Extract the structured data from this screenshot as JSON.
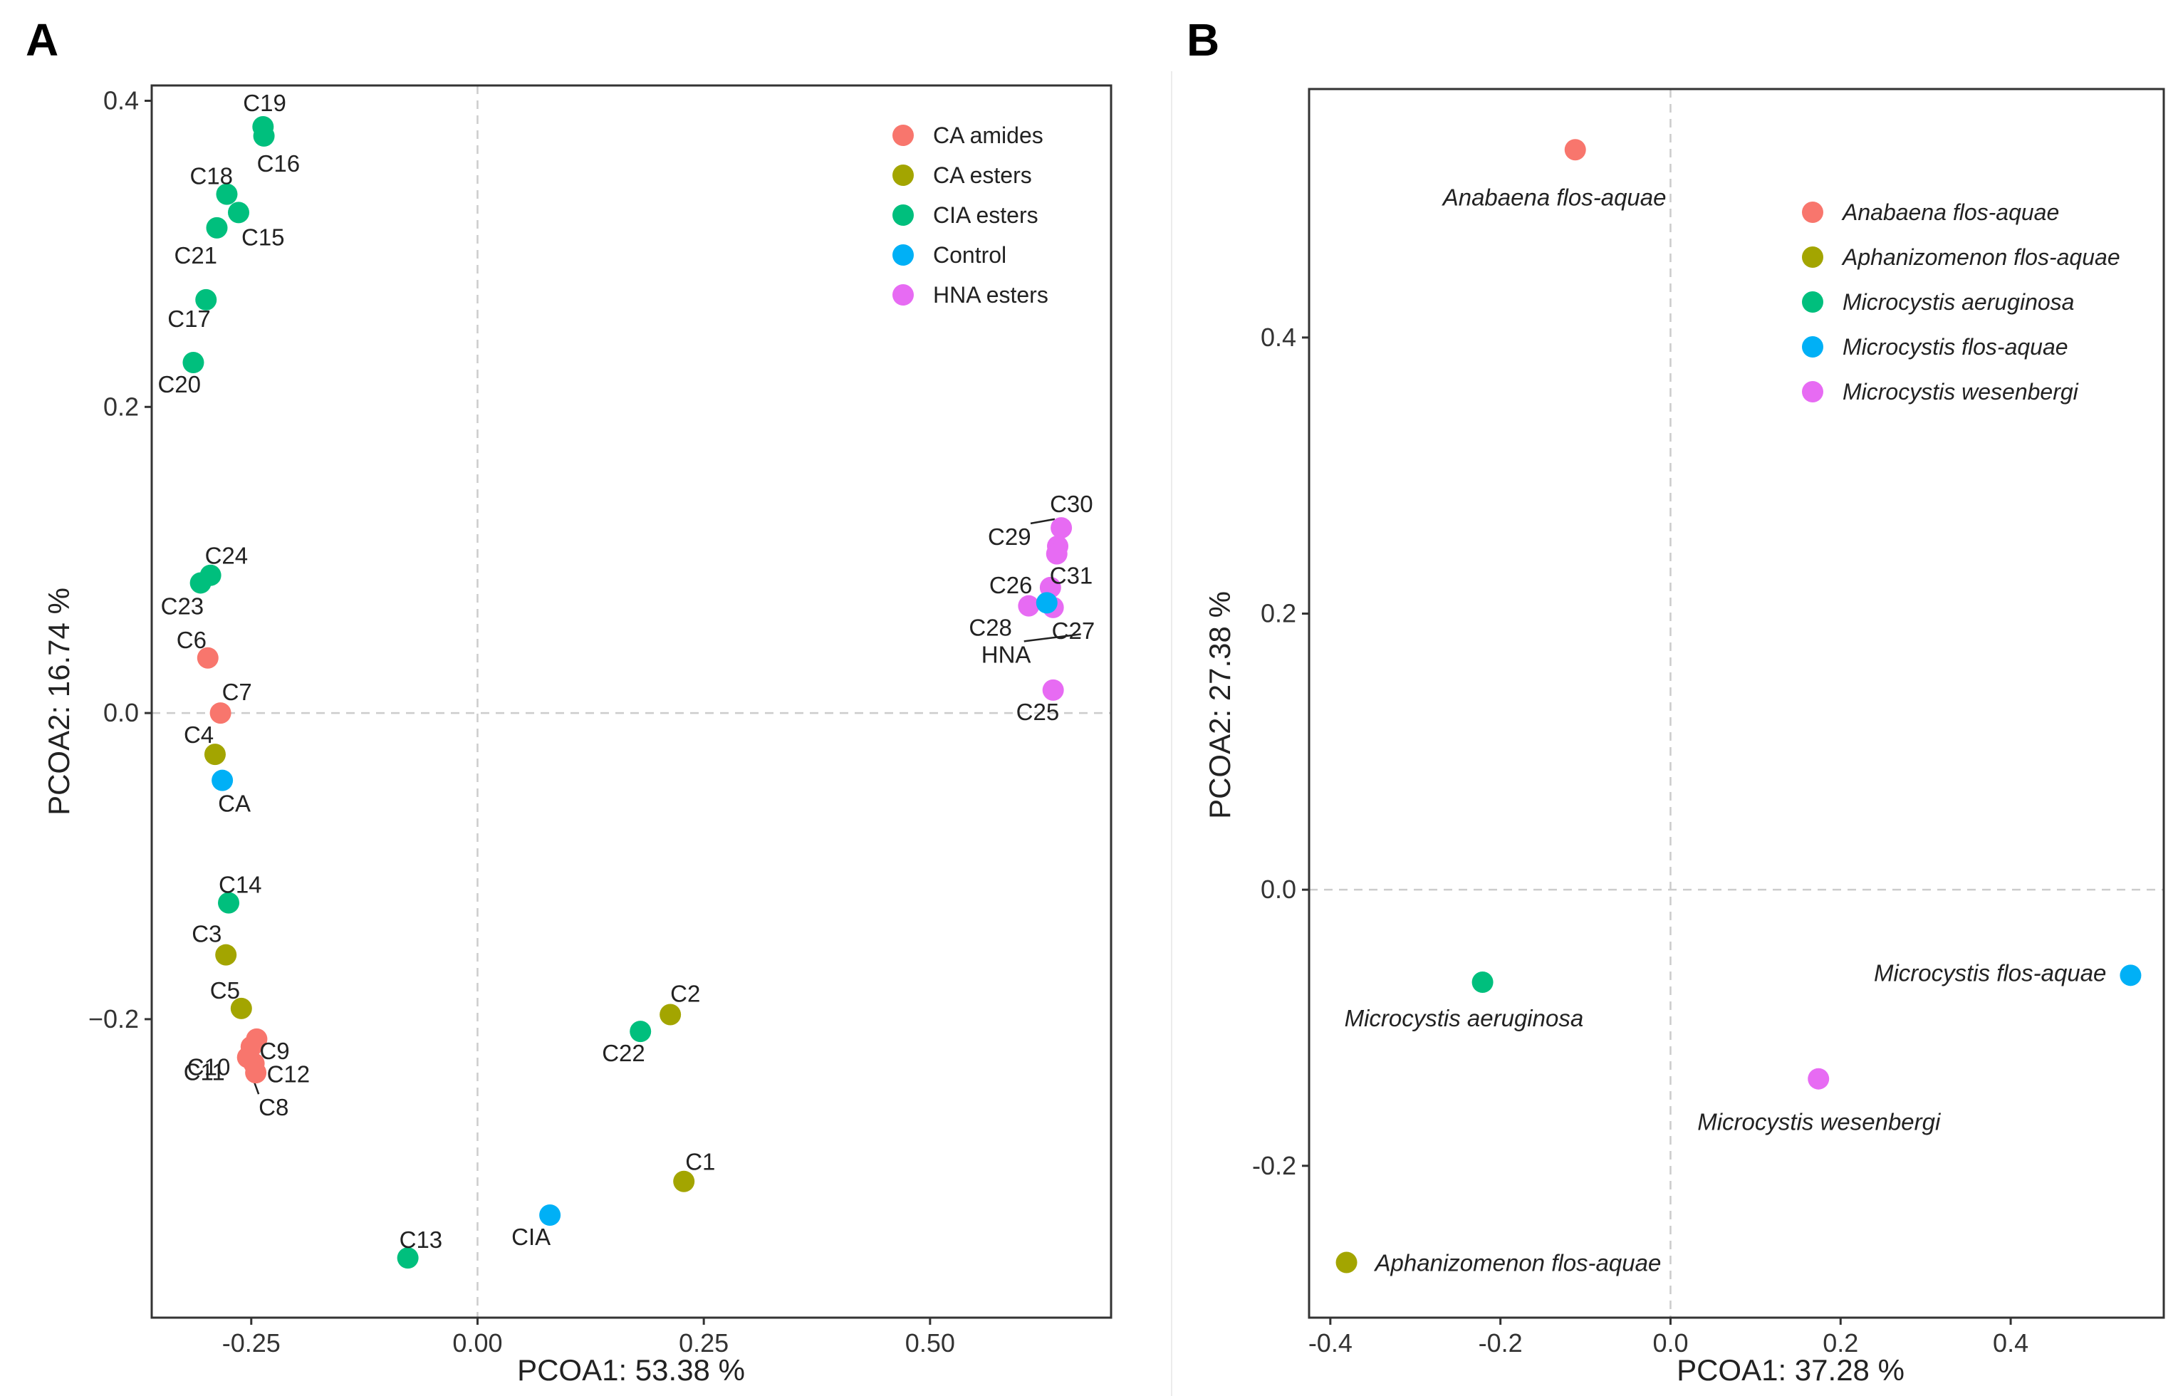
{
  "panels": [
    "A",
    "B"
  ],
  "chart_data": [
    {
      "type": "scatter",
      "panel": "A",
      "xlabel": "PCOA1:  53.38 %",
      "ylabel": "PCOA2:  16.74 %",
      "xlim": [
        -0.36,
        0.7
      ],
      "ylim": [
        -0.395,
        0.41
      ],
      "xticks": [
        -0.25,
        0.0,
        0.25,
        0.5
      ],
      "xtick_labels": [
        "-0.25",
        "0.00",
        "0.25",
        "0.50"
      ],
      "yticks": [
        -0.2,
        0.0,
        0.2,
        0.4
      ],
      "ytick_labels": [
        "−0.2",
        "0.0",
        "0.2",
        "0.4"
      ],
      "reference_lines": {
        "x": 0,
        "y": 0
      },
      "legend": [
        {
          "name": "CA amides",
          "color": "#F8766D"
        },
        {
          "name": "CA esters",
          "color": "#A3A500"
        },
        {
          "name": "CIA esters",
          "color": "#00BF7D"
        },
        {
          "name": "Control",
          "color": "#00B0F6"
        },
        {
          "name": "HNA esters",
          "color": "#E76BF3"
        }
      ],
      "points": [
        {
          "label": "C19",
          "group": "CIA esters",
          "x": -0.237,
          "y": 0.383
        },
        {
          "label": "C16",
          "group": "CIA esters",
          "x": -0.236,
          "y": 0.377
        },
        {
          "label": "C18",
          "group": "CIA esters",
          "x": -0.277,
          "y": 0.339
        },
        {
          "label": "C15",
          "group": "CIA esters",
          "x": -0.264,
          "y": 0.327
        },
        {
          "label": "C21",
          "group": "CIA esters",
          "x": -0.288,
          "y": 0.317
        },
        {
          "label": "C17",
          "group": "CIA esters",
          "x": -0.3,
          "y": 0.27
        },
        {
          "label": "C20",
          "group": "CIA esters",
          "x": -0.314,
          "y": 0.229
        },
        {
          "label": "C24",
          "group": "CIA esters",
          "x": -0.295,
          "y": 0.09
        },
        {
          "label": "C23",
          "group": "CIA esters",
          "x": -0.306,
          "y": 0.085
        },
        {
          "label": "C6",
          "group": "CA amides",
          "x": -0.298,
          "y": 0.036
        },
        {
          "label": "C7",
          "group": "CA amides",
          "x": -0.284,
          "y": 0.0
        },
        {
          "label": "C4",
          "group": "CA esters",
          "x": -0.29,
          "y": -0.027
        },
        {
          "label": "CA",
          "group": "Control",
          "x": -0.282,
          "y": -0.044
        },
        {
          "label": "C14",
          "group": "CIA esters",
          "x": -0.275,
          "y": -0.124
        },
        {
          "label": "C3",
          "group": "CA esters",
          "x": -0.278,
          "y": -0.158
        },
        {
          "label": "C5",
          "group": "CA esters",
          "x": -0.261,
          "y": -0.193
        },
        {
          "label": "C9",
          "group": "CA amides",
          "x": -0.244,
          "y": -0.213
        },
        {
          "label": "C10",
          "group": "CA amides",
          "x": -0.25,
          "y": -0.218
        },
        {
          "label": "C12",
          "group": "CA amides",
          "x": -0.247,
          "y": -0.229
        },
        {
          "label": "C11",
          "group": "CA amides",
          "x": -0.254,
          "y": -0.225
        },
        {
          "label": "C8",
          "group": "CA amides",
          "x": -0.245,
          "y": -0.235
        },
        {
          "label": "C2",
          "group": "CA esters",
          "x": 0.213,
          "y": -0.197
        },
        {
          "label": "C22",
          "group": "CIA esters",
          "x": 0.18,
          "y": -0.208
        },
        {
          "label": "C1",
          "group": "CA esters",
          "x": 0.228,
          "y": -0.306
        },
        {
          "label": "CIA",
          "group": "Control",
          "x": 0.08,
          "y": -0.328
        },
        {
          "label": "C13",
          "group": "CIA esters",
          "x": -0.077,
          "y": -0.356
        },
        {
          "label": "C30",
          "group": "HNA esters",
          "x": 0.645,
          "y": 0.121
        },
        {
          "label": "C29",
          "group": "HNA esters",
          "x": 0.641,
          "y": 0.109
        },
        {
          "label": "C31",
          "group": "HNA esters",
          "x": 0.64,
          "y": 0.104
        },
        {
          "label": "C26",
          "group": "HNA esters",
          "x": 0.633,
          "y": 0.082
        },
        {
          "label": "C28",
          "group": "HNA esters",
          "x": 0.609,
          "y": 0.07
        },
        {
          "label": "C27",
          "group": "HNA esters",
          "x": 0.636,
          "y": 0.069
        },
        {
          "label": "HNA",
          "group": "Control",
          "x": 0.629,
          "y": 0.072
        },
        {
          "label": "C25",
          "group": "HNA esters",
          "x": 0.636,
          "y": 0.015
        }
      ]
    },
    {
      "type": "scatter",
      "panel": "B",
      "xlabel": "PCOA1:  37.28 %",
      "ylabel": "PCOA2:  27.38 %",
      "xlim": [
        -0.425,
        0.58
      ],
      "ylim": [
        -0.31,
        0.58
      ],
      "xticks": [
        -0.4,
        -0.2,
        0.0,
        0.2,
        0.4
      ],
      "xtick_labels": [
        "-0.4",
        "-0.2",
        "0.0",
        "0.2",
        "0.4"
      ],
      "yticks": [
        -0.2,
        0.0,
        0.2,
        0.4
      ],
      "ytick_labels": [
        "-0.2",
        "0.0",
        "0.2",
        "0.4"
      ],
      "reference_lines": {
        "x": 0,
        "y": 0
      },
      "legend": [
        {
          "name": "Anabaena flos-aquae",
          "color": "#F8766D"
        },
        {
          "name": "Aphanizomenon flos-aquae",
          "color": "#A3A500"
        },
        {
          "name": "Microcystis aeruginosa",
          "color": "#00BF7D"
        },
        {
          "name": "Microcystis flos-aquae",
          "color": "#00B0F6"
        },
        {
          "name": "Microcystis wesenbergi",
          "color": "#E76BF3"
        }
      ],
      "points": [
        {
          "label": "Anabaena flos-aquae",
          "group": "Anabaena flos-aquae",
          "x": -0.112,
          "y": 0.536
        },
        {
          "label": "Microcystis aeruginosa",
          "group": "Microcystis aeruginosa",
          "x": -0.221,
          "y": -0.067
        },
        {
          "label": "Microcystis flos-aquae",
          "group": "Microcystis flos-aquae",
          "x": 0.541,
          "y": -0.062
        },
        {
          "label": "Microcystis wesenbergi",
          "group": "Microcystis wesenbergi",
          "x": 0.174,
          "y": -0.137
        },
        {
          "label": "Aphanizomenon flos-aquae",
          "group": "Aphanizomenon flos-aquae",
          "x": -0.381,
          "y": -0.27
        }
      ]
    }
  ]
}
